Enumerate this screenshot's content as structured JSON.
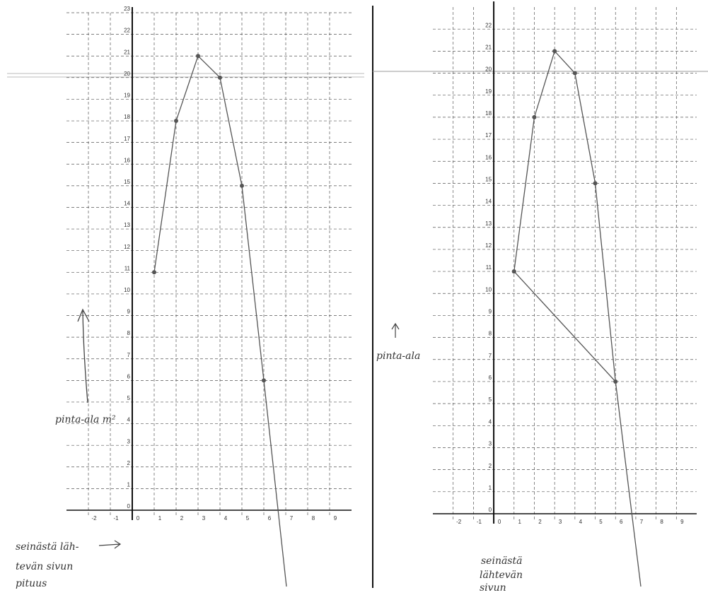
{
  "chart_data": [
    {
      "type": "line",
      "x": [
        1,
        2,
        3,
        4,
        5,
        6
      ],
      "series": [
        {
          "color": "#555555",
          "values": [
            11,
            18,
            21,
            20,
            15,
            6
          ]
        }
      ],
      "xlim": [
        -3,
        10
      ],
      "ylim": [
        0,
        23
      ],
      "xticks": [
        -2,
        -1,
        0,
        1,
        2,
        3,
        4,
        5,
        6,
        7,
        8,
        9
      ],
      "yticks": [
        0,
        1,
        2,
        3,
        4,
        5,
        6,
        7,
        8,
        9,
        10,
        11,
        12,
        13,
        14,
        15,
        16,
        17,
        18,
        19,
        20,
        21,
        22,
        23
      ],
      "grid": true,
      "annotations": [
        "pinta-ala m²",
        "seinästä läh-",
        "tevän sivun",
        "pituus"
      ]
    },
    {
      "type": "line",
      "x": [
        1,
        2,
        3,
        4,
        5,
        6,
        1
      ],
      "series": [
        {
          "color": "#555555",
          "values": [
            11,
            18,
            21,
            20,
            15,
            6,
            11
          ]
        }
      ],
      "xlim": [
        -3,
        10
      ],
      "ylim": [
        0,
        23
      ],
      "xticks": [
        -2,
        -1,
        0,
        1,
        2,
        3,
        4,
        5,
        6,
        7,
        8,
        9
      ],
      "yticks": [
        0,
        1,
        2,
        3,
        4,
        5,
        6,
        7,
        8,
        9,
        10,
        11,
        12,
        13,
        14,
        15,
        16,
        17,
        18,
        19,
        20,
        21,
        22
      ],
      "grid": true,
      "annotations": [
        "pinta-ala",
        "seinästä",
        "lähtevän",
        "sivun"
      ]
    }
  ]
}
